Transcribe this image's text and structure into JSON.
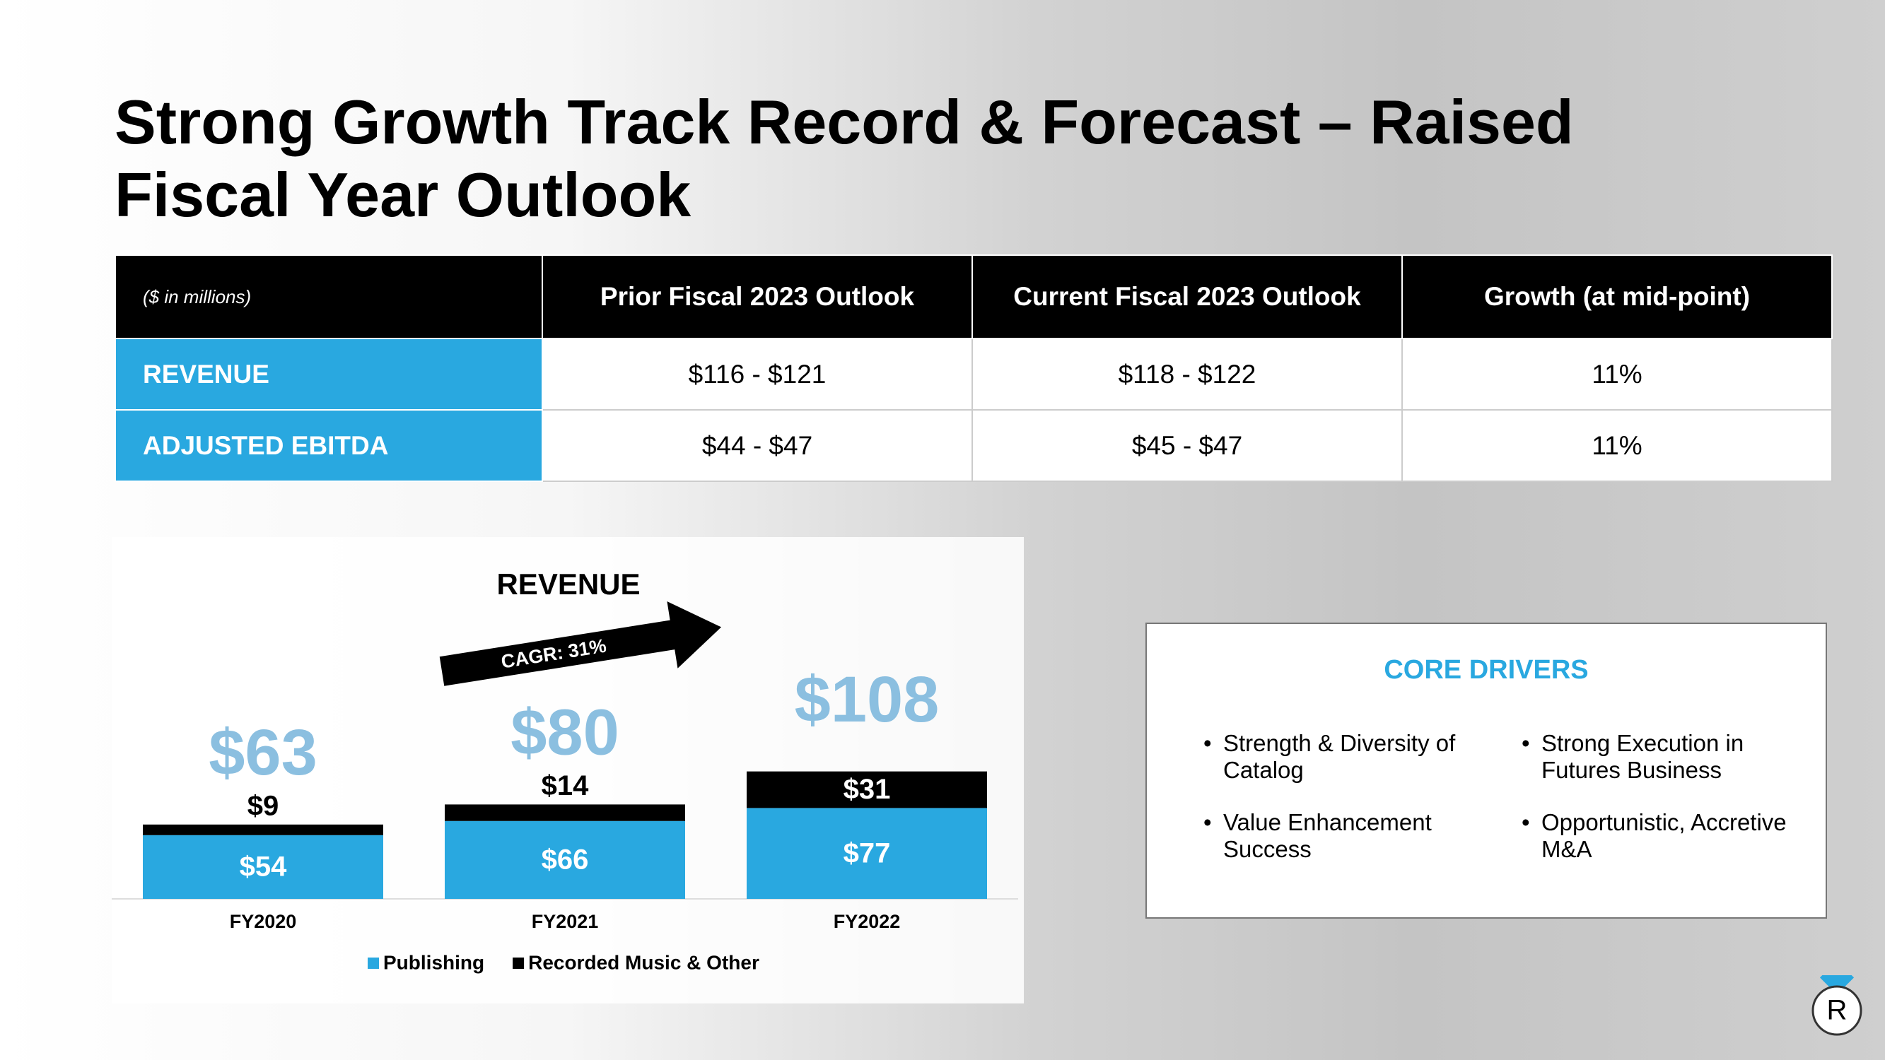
{
  "header": {
    "title_lines": [
      "Strong Growth Track Record & Forecast – Raised",
      "Fiscal Year Outlook"
    ]
  },
  "table": {
    "header": [
      "($ in millions)",
      "Prior Fiscal 2023 Outlook",
      "Current Fiscal 2023 Outlook",
      "Growth (at mid-point)"
    ],
    "rows": [
      [
        "REVENUE",
        "$116 - $121",
        "$118 - $122",
        "11%"
      ],
      [
        "ADJUSTED EBITDA",
        "$44 - $47",
        "$45 - $47",
        "11%"
      ]
    ]
  },
  "chart_data": {
    "type": "stacked-bar",
    "title": "REVENUE",
    "annotation": "CAGR: 31%",
    "categories": [
      "FY2020",
      "FY2021",
      "FY2022"
    ],
    "series": [
      {
        "name": "Publishing",
        "color": "#29a8e0",
        "values": [
          54,
          66,
          77
        ],
        "value_labels": [
          "$54",
          "$66",
          "$77"
        ]
      },
      {
        "name": "Recorded Music & Other",
        "color": "#000000",
        "values": [
          9,
          14,
          31
        ],
        "value_labels": [
          "$9",
          "$14",
          "$31"
        ]
      }
    ],
    "totals": [
      63,
      80,
      108
    ],
    "total_labels": [
      "$63",
      "$80",
      "$108"
    ],
    "total_color": "#8bbfe0"
  },
  "core_drivers": {
    "title": "CORE DRIVERS",
    "items": [
      "Strength & Diversity of Catalog",
      "Strong Execution in Futures Business",
      "Value Enhancement Success",
      "Opportunistic, Accretive M&A"
    ]
  }
}
